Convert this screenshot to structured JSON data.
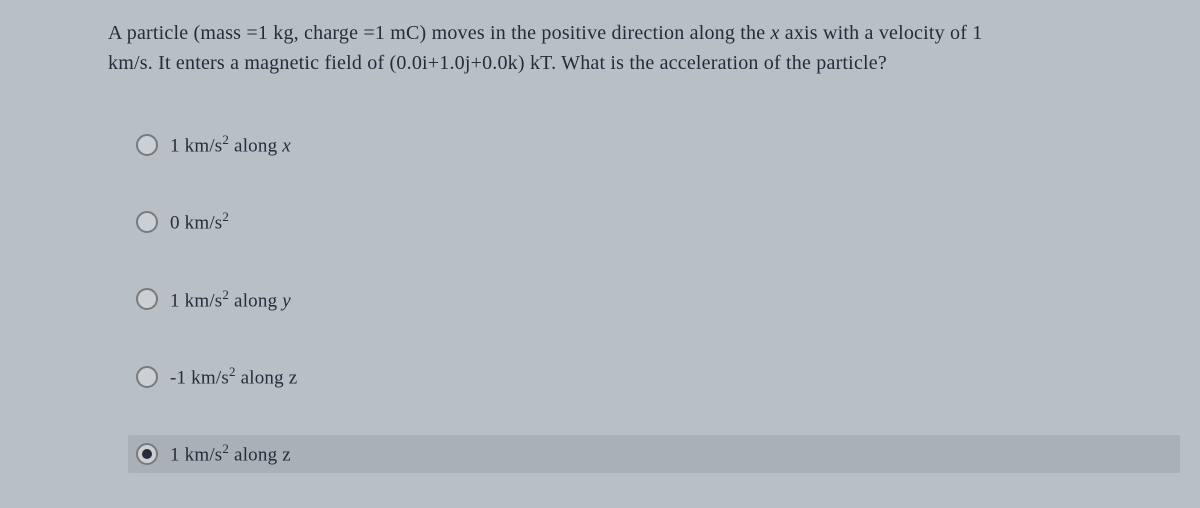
{
  "question": {
    "line1_part1": "A particle (mass =1 kg, charge =1 mC) moves in the positive direction along the ",
    "line1_italic": "x",
    "line1_part2": " axis with a velocity of 1",
    "line2": "km/s. It enters a magnetic field of (0.0i+1.0j+0.0k) kT. What is the acceleration of the particle?"
  },
  "options": [
    {
      "prefix": "1 km/s",
      "sup": "2",
      "mid": " along ",
      "axis": "x",
      "axis_italic": true,
      "selected": false
    },
    {
      "prefix": "0 km/s",
      "sup": "2",
      "mid": "",
      "axis": "",
      "axis_italic": false,
      "selected": false
    },
    {
      "prefix": "1 km/s",
      "sup": "2",
      "mid": " along ",
      "axis": "y",
      "axis_italic": true,
      "selected": false
    },
    {
      "prefix": "-1 km/s",
      "sup": "2",
      "mid": " along z",
      "axis": "",
      "axis_italic": false,
      "selected": false
    },
    {
      "prefix": "1 km/s",
      "sup": "2",
      "mid": " along z",
      "axis": "",
      "axis_italic": false,
      "selected": true
    }
  ],
  "colors": {
    "background": "#b8bfc5",
    "text": "#2a2a3a",
    "selected_bg": "#aab0b7",
    "radio_border": "#7a7a7a",
    "radio_fill": "#2a2a3a"
  }
}
